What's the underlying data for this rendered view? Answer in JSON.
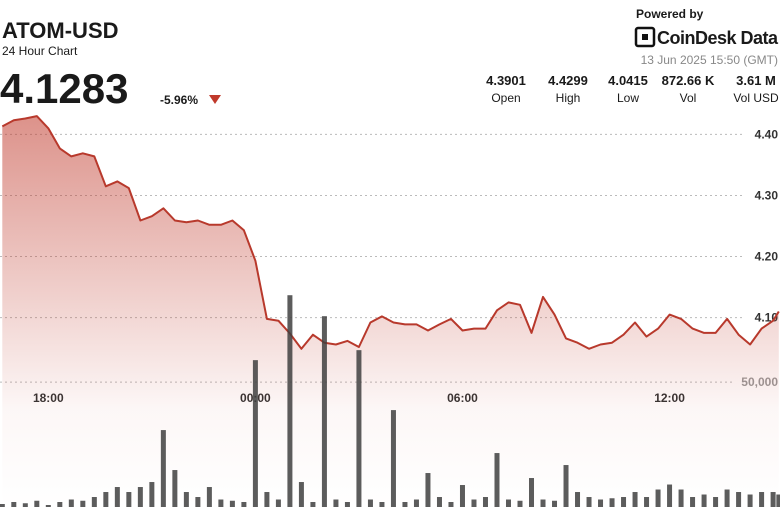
{
  "header": {
    "symbol": "ATOM-USD",
    "subtitle": "24 Hour Chart",
    "price": "4.1283",
    "change": "-5.96%",
    "powered_by": "Powered by",
    "brand": "CoinDesk Data",
    "timestamp": "13 Jun 2025 15:50 (GMT)",
    "stats": [
      {
        "value": "4.3901",
        "label": "Open"
      },
      {
        "value": "4.4299",
        "label": "High"
      },
      {
        "value": "4.0415",
        "label": "Low"
      },
      {
        "value": "872.66 K",
        "label": "Vol"
      },
      {
        "value": "3.61 M",
        "label": "Vol USD"
      }
    ]
  },
  "chart_data": {
    "type": "line",
    "x": [
      "16:40",
      "17:00",
      "17:20",
      "17:40",
      "18:00",
      "18:20",
      "18:40",
      "19:00",
      "19:20",
      "19:40",
      "20:00",
      "20:20",
      "20:40",
      "21:00",
      "21:20",
      "21:40",
      "22:00",
      "22:20",
      "22:40",
      "23:00",
      "23:20",
      "23:40",
      "00:00",
      "00:20",
      "00:40",
      "01:00",
      "01:20",
      "01:40",
      "02:00",
      "02:20",
      "02:40",
      "03:00",
      "03:20",
      "03:40",
      "04:00",
      "04:20",
      "04:40",
      "05:00",
      "05:20",
      "05:40",
      "06:00",
      "06:20",
      "06:40",
      "07:00",
      "07:20",
      "07:40",
      "08:00",
      "08:20",
      "08:40",
      "09:00",
      "09:20",
      "09:40",
      "10:00",
      "10:20",
      "10:40",
      "11:00",
      "11:20",
      "11:40",
      "12:00",
      "12:20",
      "12:40",
      "13:00",
      "13:20",
      "13:40",
      "14:00",
      "14:20",
      "14:40",
      "15:00",
      "15:10"
    ],
    "series": [
      {
        "name": "Price",
        "color": "#b8392c",
        "values": [
          4.413,
          4.423,
          4.426,
          4.43,
          4.41,
          4.377,
          4.364,
          4.369,
          4.364,
          4.315,
          4.323,
          4.312,
          4.259,
          4.266,
          4.279,
          4.259,
          4.256,
          4.259,
          4.252,
          4.252,
          4.259,
          4.243,
          4.193,
          4.098,
          4.095,
          4.074,
          4.049,
          4.072,
          4.059,
          4.056,
          4.062,
          4.052,
          4.092,
          4.102,
          4.092,
          4.089,
          4.089,
          4.079,
          4.089,
          4.098,
          4.079,
          4.082,
          4.082,
          4.112,
          4.125,
          4.121,
          4.075,
          4.134,
          4.105,
          4.066,
          4.059,
          4.049,
          4.056,
          4.059,
          4.072,
          4.092,
          4.069,
          4.082,
          4.105,
          4.098,
          4.082,
          4.075,
          4.075,
          4.098,
          4.072,
          4.056,
          4.082,
          4.095,
          4.11
        ]
      },
      {
        "name": "Volume",
        "color": "#3f3f3f",
        "axis": "y2",
        "values": [
          1200,
          2000,
          1500,
          2500,
          800,
          2000,
          3000,
          2500,
          4000,
          6000,
          8000,
          6000,
          8000,
          10000,
          30800,
          14800,
          6000,
          4000,
          8000,
          3000,
          2500,
          2000,
          58800,
          6000,
          3000,
          84800,
          10000,
          2000,
          76400,
          3000,
          2000,
          62800,
          3000,
          2000,
          38800,
          2000,
          3000,
          13600,
          4000,
          2000,
          8800,
          3000,
          4000,
          21600,
          3000,
          2500,
          11600,
          3000,
          2500,
          16800,
          6000,
          4000,
          3000,
          3500,
          4000,
          6000,
          4000,
          7000,
          9000,
          7000,
          4000,
          5000,
          4000,
          7000,
          6000,
          5000,
          6000,
          6000,
          5000
        ]
      }
    ],
    "xlim": [
      "16:36",
      "15:12"
    ],
    "xticks": [
      "18:00",
      "00:00",
      "06:00",
      "12:00"
    ],
    "ylim": [
      3.79,
      4.62
    ],
    "yticks": [
      {
        "value": 4.1,
        "label": "4.10"
      },
      {
        "value": 4.2,
        "label": "4.20"
      },
      {
        "value": 4.3,
        "label": "4.30"
      },
      {
        "value": 4.4,
        "label": "4.40"
      }
    ],
    "y2lim": [
      0,
      203000
    ],
    "y2ticks": [
      {
        "value": 50000,
        "label": "50,000"
      }
    ],
    "grid": true
  }
}
